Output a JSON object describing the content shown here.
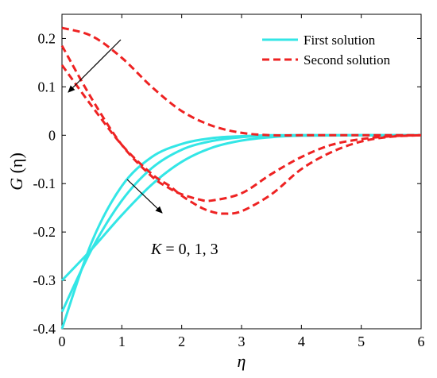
{
  "chart_data": {
    "type": "line",
    "xlabel": "η",
    "ylabel_prefix": "G",
    "ylabel_arg": "(η)",
    "xlim": [
      0,
      6
    ],
    "ylim": [
      -0.4,
      0.25
    ],
    "xticks": [
      0,
      1,
      2,
      3,
      4,
      5,
      6
    ],
    "yticks": [
      -0.4,
      -0.3,
      -0.2,
      -0.1,
      0,
      0.1,
      0.2
    ],
    "grid": false,
    "legend_position": "top-right",
    "colors": {
      "first": "#33e6e6",
      "second": "#ee2222"
    },
    "legend": [
      {
        "label": "First solution",
        "style": "solid",
        "color": "#33e6e6"
      },
      {
        "label": "Second solution",
        "style": "dashed",
        "color": "#ee2222"
      }
    ],
    "annotation": {
      "var": "K",
      "text": " = 0, 1, 3"
    },
    "series": [
      {
        "style": "solid",
        "color": "#33e6e6",
        "x": [
          0,
          0.5,
          1,
          1.5,
          2,
          2.5,
          3,
          3.5,
          4,
          5,
          6
        ],
        "y": [
          -0.4,
          -0.22,
          -0.105,
          -0.045,
          -0.018,
          -0.006,
          -0.002,
          0,
          0,
          0,
          0
        ]
      },
      {
        "style": "solid",
        "color": "#33e6e6",
        "x": [
          0,
          0.5,
          1,
          1.5,
          2,
          2.5,
          3,
          3.5,
          4,
          5,
          6
        ],
        "y": [
          -0.365,
          -0.235,
          -0.135,
          -0.068,
          -0.03,
          -0.012,
          -0.004,
          -0.001,
          0,
          0,
          0
        ]
      },
      {
        "style": "solid",
        "color": "#33e6e6",
        "x": [
          0,
          0.5,
          1,
          1.5,
          2,
          2.5,
          3,
          3.5,
          4,
          5,
          6
        ],
        "y": [
          -0.3,
          -0.235,
          -0.165,
          -0.102,
          -0.055,
          -0.026,
          -0.011,
          -0.004,
          -0.001,
          0,
          0
        ]
      },
      {
        "style": "dashed",
        "color": "#ee2222",
        "x": [
          0,
          0.5,
          1,
          1.5,
          1.8,
          2,
          2.3,
          2.5,
          3,
          3.5,
          4,
          4.5,
          5,
          5.5,
          6
        ],
        "y": [
          0.185,
          0.075,
          -0.02,
          -0.085,
          -0.11,
          -0.122,
          -0.133,
          -0.135,
          -0.12,
          -0.08,
          -0.045,
          -0.02,
          -0.008,
          -0.002,
          0
        ]
      },
      {
        "style": "dashed",
        "color": "#ee2222",
        "x": [
          0,
          0.5,
          1,
          1.5,
          1.8,
          2,
          2.3,
          2.5,
          2.7,
          3,
          3.5,
          4,
          4.5,
          5,
          5.5,
          6
        ],
        "y": [
          0.145,
          0.06,
          -0.02,
          -0.08,
          -0.105,
          -0.125,
          -0.148,
          -0.158,
          -0.162,
          -0.157,
          -0.122,
          -0.07,
          -0.035,
          -0.013,
          -0.003,
          0
        ]
      },
      {
        "style": "dashed",
        "color": "#ee2222",
        "x": [
          0,
          0.5,
          1,
          1.5,
          2,
          2.5,
          3,
          3.5,
          4,
          4.5,
          5,
          5.5,
          6
        ],
        "y": [
          0.222,
          0.205,
          0.16,
          0.1,
          0.05,
          0.02,
          0.005,
          0,
          0,
          0,
          0,
          0,
          0
        ]
      }
    ]
  }
}
